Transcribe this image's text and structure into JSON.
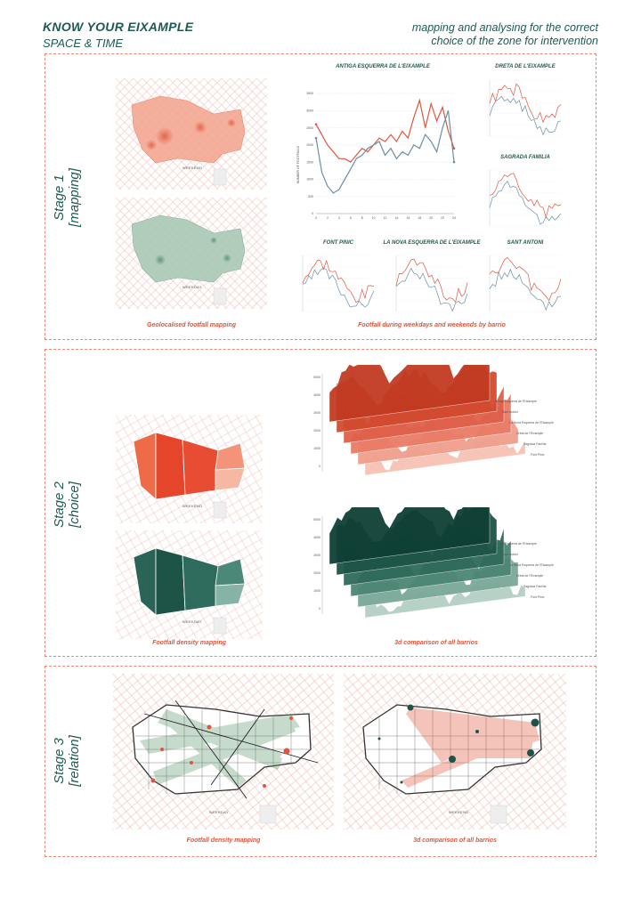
{
  "header": {
    "title": "KNOW YOUR EIXAMPLE",
    "subtitle": "SPACE & TIME",
    "tagline_line1": "mapping and analysing for the correct",
    "tagline_line2": "choice of the zone for intervention"
  },
  "stage1": {
    "label_line1": "Stage 1",
    "label_line2": "[mapping]",
    "map_weekend_label": "WEEKEND",
    "map_weekday_label": "WEEKDAY",
    "caption_left": "Geolocalised footfall mapping",
    "caption_right": "Footfall during weekdays and weekends by barrio",
    "main_chart_title": "ANTIGA ESQUERRA DE L'EIXAMPLE",
    "main_chart_ylabel": "NUMBER OF FOOTFALLS",
    "small_titles": [
      "DRETA DE L'EIXAMPLE",
      "SAGRADA FAMILIA",
      "FONT PINIC",
      "LA NOVA ESQUERRA DE L'EIXAMPLE",
      "SANT ANTONI"
    ]
  },
  "stage2": {
    "label_line1": "Stage 2",
    "label_line2": "[choice]",
    "map_weekend_label": "WEEKEND",
    "map_weekday_label": "WEEKDAY",
    "caption_left": "Footfall density mapping",
    "caption_right": "3d comparison of all barrios",
    "series_labels": [
      "Antiga Esquerra de l'Eixample",
      "Sant Antoni",
      "La Nova Esquerra de l'Eixample",
      "Dreta de l'Eixample",
      "Sagrada Familia",
      "Font Pinic"
    ]
  },
  "stage3": {
    "label_line1": "Stage 3",
    "label_line2": "[relation]",
    "map_weekday_label": "WEEKDAY",
    "map_weekend_label": "WEEKEND",
    "caption_left": "Footfall density mapping",
    "caption_right": "3d comparison of all barrios"
  },
  "colors": {
    "teal": "#1f5a52",
    "accent": "#e0553a",
    "dashed_border": "#e88a70",
    "weekday_red": "#e2553c",
    "weekend_blue": "#6a8fa6",
    "green_dark": "#1e5448"
  },
  "chart_data": {
    "type": "line",
    "title": "ANTIGA ESQUERRA DE L'EIXAMPLE",
    "ylabel": "NUMBER OF FOOTFALLS",
    "xlim": [
      0,
      24
    ],
    "ylim": [
      0,
      3500
    ],
    "x": [
      0,
      1,
      2,
      3,
      4,
      5,
      6,
      7,
      8,
      9,
      10,
      11,
      12,
      13,
      14,
      15,
      16,
      17,
      18,
      19,
      20,
      21,
      22,
      23,
      24
    ],
    "series": [
      {
        "values": [
          2600,
          2300,
          2000,
          1800,
          1600,
          1600,
          1500,
          1700,
          1900,
          1800,
          2000,
          2200,
          2100,
          2300,
          2100,
          2400,
          2200,
          2800,
          3300,
          2500,
          3200,
          2700,
          3100,
          2400,
          1900
        ]
      },
      {
        "values": [
          2200,
          1200,
          800,
          600,
          700,
          1000,
          1300,
          1600,
          1700,
          1900,
          2000,
          2100,
          1700,
          1900,
          1600,
          1800,
          1700,
          2000,
          1900,
          2300,
          2100,
          1800,
          2500,
          3000,
          1500
        ]
      }
    ]
  }
}
